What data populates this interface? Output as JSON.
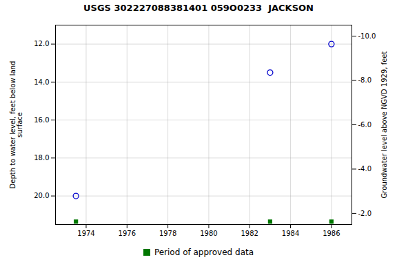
{
  "chart_data": {
    "type": "scatter",
    "title": "USGS 302227088381401 059O0233  JACKSON",
    "ylabel": "Depth to water level, feet below land\nsurface",
    "y2label": "Groundwater level above NGVD 1929, feet",
    "xlim": [
      1972.5,
      1987.0
    ],
    "ylim": [
      21.5,
      11.0
    ],
    "y2lim": [
      -1.5,
      -10.5
    ],
    "xticks": [
      1974,
      1976,
      1978,
      1980,
      1982,
      1984,
      1986
    ],
    "yticks": [
      {
        "value": 12.0,
        "label": "12.0"
      },
      {
        "value": 14.0,
        "label": "14.0"
      },
      {
        "value": 16.0,
        "label": "16.0"
      },
      {
        "value": 18.0,
        "label": "18.0"
      },
      {
        "value": 20.0,
        "label": "20.0"
      }
    ],
    "y2ticks": [
      {
        "value": -2.0,
        "label": "-2.0"
      },
      {
        "value": -4.0,
        "label": "-4.0"
      },
      {
        "value": -6.0,
        "label": "-6.0"
      },
      {
        "value": -8.0,
        "label": "-8.0"
      },
      {
        "value": -10.0,
        "label": "-10.0"
      }
    ],
    "grid": true,
    "legend": "bottom",
    "series": [
      {
        "x": [
          1973.5,
          1983.0,
          1986.0
        ],
        "values": [
          20.0,
          13.5,
          12.0
        ],
        "color": "#0000cc",
        "marker": "circle"
      },
      {
        "name": "Period of approved data",
        "x": [
          1973.5,
          1983.0,
          1986.0
        ],
        "values": [
          21.35,
          21.35,
          21.35
        ],
        "color": "#007700",
        "marker": "square"
      }
    ]
  }
}
